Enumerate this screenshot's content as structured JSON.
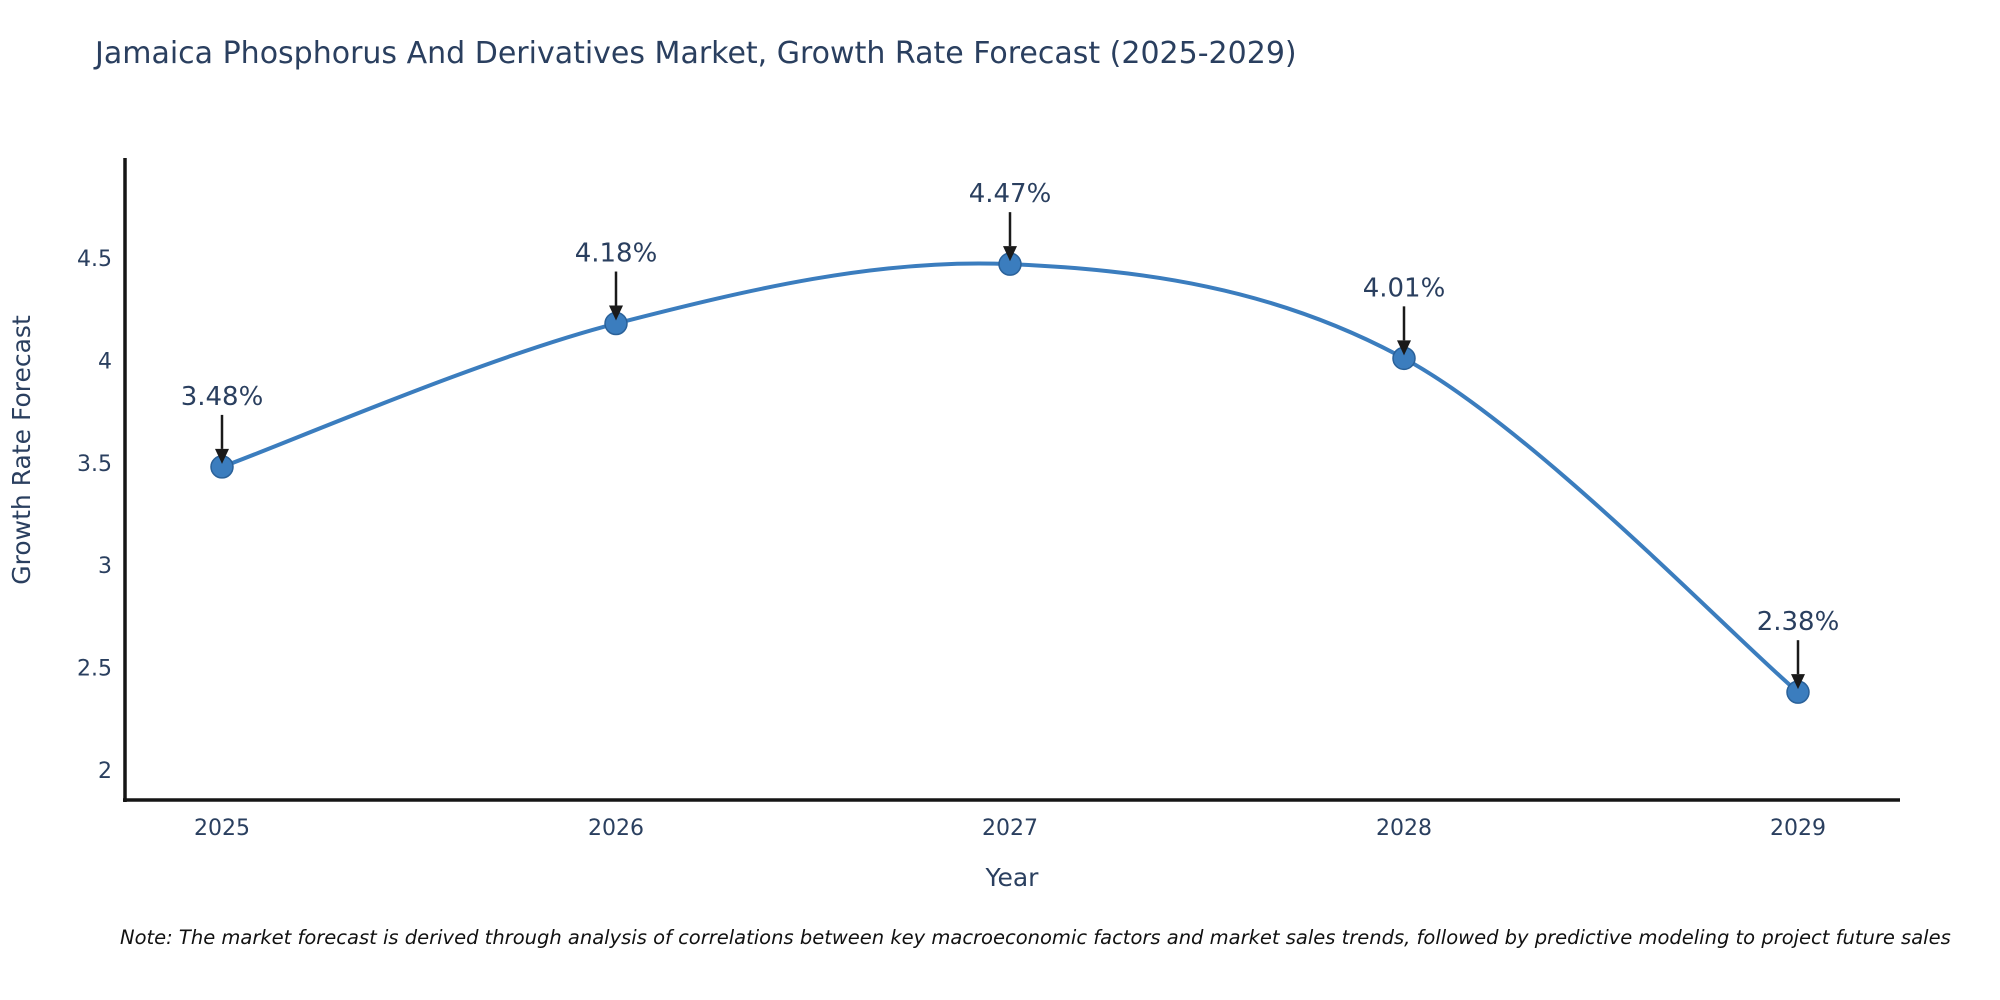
{
  "title": "Jamaica Phosphorus And Derivatives Market, Growth Rate Forecast (2025-2029)",
  "note": "Note: The market forecast is derived through analysis of correlations between key macroeconomic factors and market sales trends, followed by predictive modeling to project future sales",
  "chart_data": {
    "type": "line",
    "line_shape": "spline",
    "title": "Jamaica Phosphorus And Derivatives Market, Growth Rate Forecast (2025-2029)",
    "xlabel": "Year",
    "ylabel": "Growth Rate Forecast",
    "x": [
      2025,
      2026,
      2027,
      2028,
      2029
    ],
    "values": [
      3.48,
      4.18,
      4.47,
      4.01,
      2.38
    ],
    "point_labels": [
      "3.48%",
      "4.18%",
      "4.47%",
      "4.01%",
      "2.38%"
    ],
    "yticks": [
      2,
      2.5,
      3,
      3.5,
      4,
      4.5
    ],
    "ylim": [
      1.85,
      5.0
    ],
    "grid": false,
    "legend": "none",
    "annotations_style": "value label with downward arrow to marker",
    "colors": {
      "line": "#3b7dbe",
      "marker_fill": "#3b7dbe",
      "marker_edge": "#2a6199",
      "text": "#2a3f5f",
      "axis_line": "#151515",
      "arrow": "#1a1a1a",
      "note_text": "#111111",
      "background": "#ffffff"
    }
  }
}
